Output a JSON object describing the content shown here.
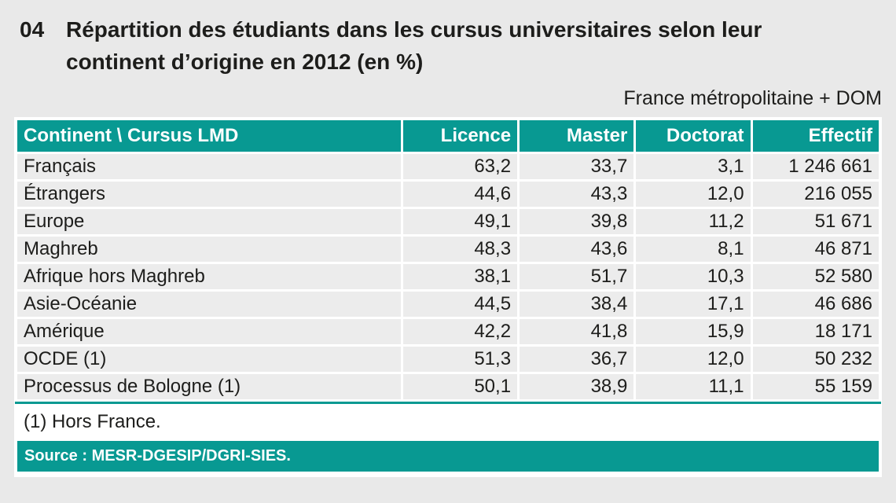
{
  "colors": {
    "teal": "#089992",
    "page_bg": "#e9e9e9",
    "row_bg": "#ececec"
  },
  "figure": {
    "number": "04",
    "title_lines": [
      "Répartition des étudiants dans les cursus universitaires selon leur",
      "continent d’origine en 2012 (en %)"
    ],
    "scope_note": "France métropolitaine + DOM"
  },
  "table": {
    "columns": [
      "Continent \\ Cursus LMD",
      "Licence",
      "Master",
      "Doctorat",
      "Effectif"
    ],
    "rows": [
      [
        "Français",
        "63,2",
        "33,7",
        "3,1",
        "1 246 661"
      ],
      [
        "Étrangers",
        "44,6",
        "43,3",
        "12,0",
        "216 055"
      ],
      [
        "Europe",
        "49,1",
        "39,8",
        "11,2",
        "51 671"
      ],
      [
        "Maghreb",
        "48,3",
        "43,6",
        "8,1",
        "46 871"
      ],
      [
        "Afrique hors Maghreb",
        "38,1",
        "51,7",
        "10,3",
        "52 580"
      ],
      [
        "Asie-Océanie",
        "44,5",
        "38,4",
        "17,1",
        "46 686"
      ],
      [
        "Amérique",
        "42,2",
        "41,8",
        "15,9",
        "18 171"
      ],
      [
        "OCDE (1)",
        "51,3",
        "36,7",
        "12,0",
        "50 232"
      ],
      [
        "Processus de Bologne (1)",
        "50,1",
        "38,9",
        "11,1",
        "55 159"
      ]
    ],
    "footnote": "(1) Hors France.",
    "source": "Source : MESR-DGESIP/DGRI-SIES."
  },
  "chart_data": {
    "type": "table",
    "title": "Répartition des étudiants dans les cursus universitaires selon leur continent d’origine en 2012 (en %)",
    "figure_number": "04",
    "scope": "France métropolitaine + DOM",
    "columns": [
      "Continent \\ Cursus LMD",
      "Licence",
      "Master",
      "Doctorat",
      "Effectif"
    ],
    "rows": [
      {
        "continent": "Français",
        "licence": 63.2,
        "master": 33.7,
        "doctorat": 3.1,
        "effectif": 1246661
      },
      {
        "continent": "Étrangers",
        "licence": 44.6,
        "master": 43.3,
        "doctorat": 12.0,
        "effectif": 216055
      },
      {
        "continent": "Europe",
        "licence": 49.1,
        "master": 39.8,
        "doctorat": 11.2,
        "effectif": 51671
      },
      {
        "continent": "Maghreb",
        "licence": 48.3,
        "master": 43.6,
        "doctorat": 8.1,
        "effectif": 46871
      },
      {
        "continent": "Afrique hors Maghreb",
        "licence": 38.1,
        "master": 51.7,
        "doctorat": 10.3,
        "effectif": 52580
      },
      {
        "continent": "Asie-Océanie",
        "licence": 44.5,
        "master": 38.4,
        "doctorat": 17.1,
        "effectif": 46686
      },
      {
        "continent": "Amérique",
        "licence": 42.2,
        "master": 41.8,
        "doctorat": 15.9,
        "effectif": 18171
      },
      {
        "continent": "OCDE (1)",
        "licence": 51.3,
        "master": 36.7,
        "doctorat": 12.0,
        "effectif": 50232
      },
      {
        "continent": "Processus de Bologne (1)",
        "licence": 50.1,
        "master": 38.9,
        "doctorat": 11.1,
        "effectif": 55159
      }
    ],
    "footnote": "(1) Hors France.",
    "source": "Source : MESR-DGESIP/DGRI-SIES."
  }
}
